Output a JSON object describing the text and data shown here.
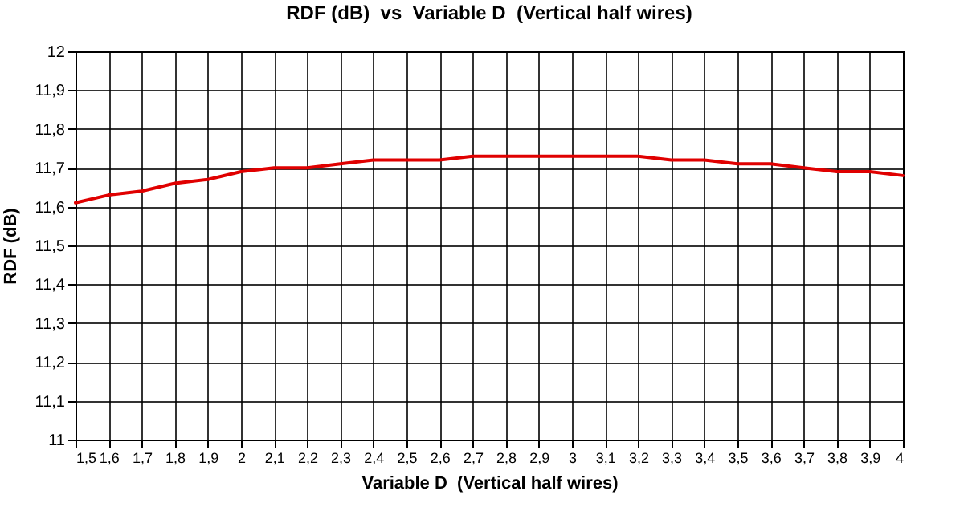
{
  "chart_data": {
    "type": "line",
    "title": "RDF (dB)  vs  Variable D  (Vertical half wires)",
    "xlabel": "Variable D  (Vertical half wires)",
    "ylabel": "RDF (dB)",
    "x": [
      1.5,
      1.6,
      1.7,
      1.8,
      1.9,
      2.0,
      2.1,
      2.2,
      2.3,
      2.4,
      2.5,
      2.6,
      2.7,
      2.8,
      2.9,
      3.0,
      3.1,
      3.2,
      3.3,
      3.4,
      3.5,
      3.6,
      3.7,
      3.8,
      3.9,
      4.0
    ],
    "series": [
      {
        "color": "#e00000",
        "values": [
          11.61,
          11.63,
          11.64,
          11.66,
          11.67,
          11.69,
          11.7,
          11.7,
          11.71,
          11.72,
          11.72,
          11.72,
          11.73,
          11.73,
          11.73,
          11.73,
          11.73,
          11.73,
          11.72,
          11.72,
          11.71,
          11.71,
          11.7,
          11.69,
          11.69,
          11.68
        ]
      }
    ],
    "xlim": [
      1.5,
      4
    ],
    "xticks": [
      {
        "value": 1.5,
        "label": "1,5"
      },
      {
        "value": 1.6,
        "label": "1,6"
      },
      {
        "value": 1.7,
        "label": "1,7"
      },
      {
        "value": 1.8,
        "label": "1,8"
      },
      {
        "value": 1.9,
        "label": "1,9"
      },
      {
        "value": 2,
        "label": "2"
      },
      {
        "value": 2.1,
        "label": "2,1"
      },
      {
        "value": 2.2,
        "label": "2,2"
      },
      {
        "value": 2.3,
        "label": "2,3"
      },
      {
        "value": 2.4,
        "label": "2,4"
      },
      {
        "value": 2.5,
        "label": "2,5"
      },
      {
        "value": 2.6,
        "label": "2,6"
      },
      {
        "value": 2.7,
        "label": "2,7"
      },
      {
        "value": 2.8,
        "label": "2,8"
      },
      {
        "value": 2.9,
        "label": "2,9"
      },
      {
        "value": 3,
        "label": "3"
      },
      {
        "value": 3.1,
        "label": "3,1"
      },
      {
        "value": 3.2,
        "label": "3,2"
      },
      {
        "value": 3.3,
        "label": "3,3"
      },
      {
        "value": 3.4,
        "label": "3,4"
      },
      {
        "value": 3.5,
        "label": "3,5"
      },
      {
        "value": 3.6,
        "label": "3,6"
      },
      {
        "value": 3.7,
        "label": "3,7"
      },
      {
        "value": 3.8,
        "label": "3,8"
      },
      {
        "value": 3.9,
        "label": "3,9"
      },
      {
        "value": 4,
        "label": "4"
      }
    ],
    "ylim": [
      11,
      12
    ],
    "yticks": [
      {
        "value": 11,
        "label": "11"
      },
      {
        "value": 11.1,
        "label": "11,1"
      },
      {
        "value": 11.2,
        "label": "11,2"
      },
      {
        "value": 11.3,
        "label": "11,3"
      },
      {
        "value": 11.4,
        "label": "11,4"
      },
      {
        "value": 11.5,
        "label": "11,5"
      },
      {
        "value": 11.6,
        "label": "11,6"
      },
      {
        "value": 11.7,
        "label": "11,7"
      },
      {
        "value": 11.8,
        "label": "11,8"
      },
      {
        "value": 11.9,
        "label": "11,9"
      },
      {
        "value": 12,
        "label": "12"
      }
    ],
    "grid": true,
    "marker": "none",
    "line_style": "solid"
  }
}
